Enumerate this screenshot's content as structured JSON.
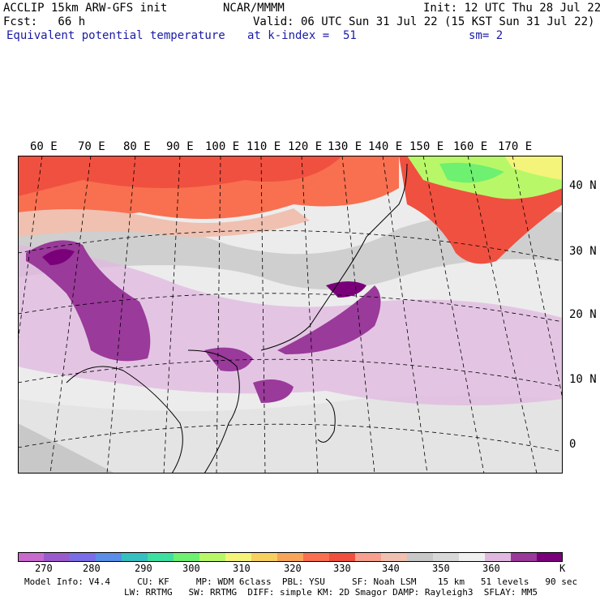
{
  "header": {
    "left1": "ACCLIP 15km ARW-GFS init",
    "left2": "Fcst:   66 h",
    "left3": "Equivalent potential temperature",
    "center1": "NCAR/MMMM",
    "right1": "Init: 12 UTC Thu 28 Jul 22",
    "valid": "Valid: 06 UTC Sun 31 Jul 22 (15 KST Sun 31 Jul 22)",
    "level": "at k-index =  51",
    "sm": "sm= 2"
  },
  "map": {
    "lon_labels": [
      "60 E",
      "70 E",
      "80 E",
      "90 E",
      "100 E",
      "110 E",
      "120 E",
      "130 E",
      "140 E",
      "150 E",
      "160 E",
      "170 E"
    ],
    "lat_labels": [
      "40 N",
      "30 N",
      "20 N",
      "10 N",
      "0"
    ]
  },
  "colorbar": {
    "colors": [
      "#c86bcc",
      "#9a5ccc",
      "#7a6ee8",
      "#5a8ee8",
      "#36c0c0",
      "#3ee0a0",
      "#6ef070",
      "#b8f868",
      "#f4f47a",
      "#f8d060",
      "#f8a45a",
      "#f87050",
      "#f05040",
      "#f8a090",
      "#f0c0b0",
      "#c8c8c8",
      "#d8d8d8",
      "#f0f0f0",
      "#e0b8e0",
      "#9a3a9a",
      "#7a007a"
    ],
    "tick_labels": [
      "270",
      "280",
      "290",
      "300",
      "310",
      "320",
      "330",
      "340",
      "350",
      "360",
      "K"
    ],
    "units": "K"
  },
  "footer": {
    "line1": "Model Info: V4.4     CU: KF     MP: WDM 6class  PBL: YSU     SF: Noah LSM    15 km   51 levels   90 sec",
    "line2": "LW: RRTMG   SW: RRTMG  DIFF: simple KM: 2D Smagor DAMP: Rayleigh3  SFLAY: MM5"
  }
}
